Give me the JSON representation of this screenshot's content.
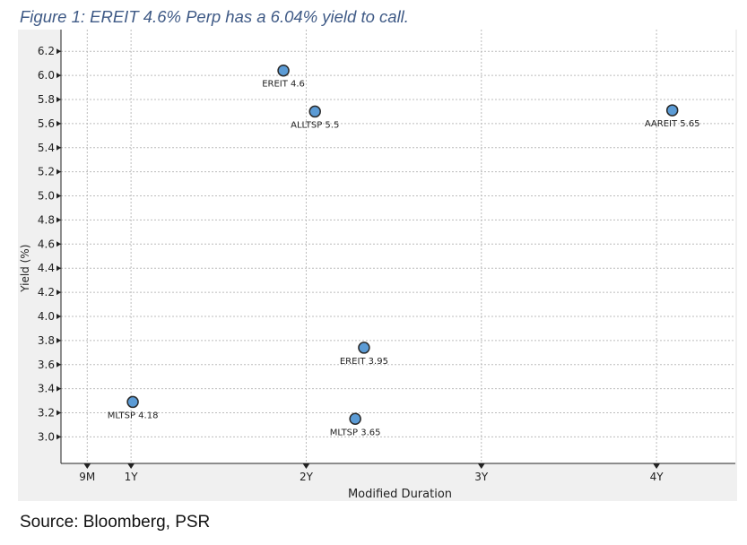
{
  "figure_title": "Figure 1: EREIT 4.6% Perp has a 6.04% yield to call.",
  "source_note": "Source: Bloomberg, PSR",
  "colors": {
    "point_fill": "#5b9bd5",
    "point_stroke": "#2b2b2b",
    "panel_bg": "#f0f0f0",
    "plot_bg": "#ffffff",
    "grid": "#bcbcbc",
    "title": "#3f5a86"
  },
  "chart_data": {
    "type": "scatter",
    "title": "",
    "xlabel": "Modified Duration",
    "ylabel": "Yield (%)",
    "xlim": [
      0.6,
      4.45
    ],
    "ylim": [
      2.78,
      6.38
    ],
    "x_ticks": [
      {
        "value": 0.75,
        "label": "9M"
      },
      {
        "value": 1,
        "label": "1Y"
      },
      {
        "value": 2,
        "label": "2Y"
      },
      {
        "value": 3,
        "label": "3Y"
      },
      {
        "value": 4,
        "label": "4Y"
      }
    ],
    "y_ticks": [
      3.0,
      3.2,
      3.4,
      3.6,
      3.8,
      4.0,
      4.2,
      4.4,
      4.6,
      4.8,
      5.0,
      5.2,
      5.4,
      5.6,
      5.8,
      6.0,
      6.2
    ],
    "y_tick_labels": [
      "3.0",
      "3.2",
      "3.4",
      "3.6",
      "3.8",
      "4.0",
      "4.2",
      "4.4",
      "4.6",
      "4.8",
      "5.0",
      "5.2",
      "5.4",
      "5.6",
      "5.8",
      "6.0",
      "6.2"
    ],
    "grid": true,
    "points": [
      {
        "label": "EREIT 4.6",
        "x": 1.87,
        "y": 6.04
      },
      {
        "label": "ALLTSP 5.5",
        "x": 2.05,
        "y": 5.7
      },
      {
        "label": "AAREIT 5.65",
        "x": 4.09,
        "y": 5.71
      },
      {
        "label": "EREIT 3.95",
        "x": 2.33,
        "y": 3.74
      },
      {
        "label": "MLTSP 3.65",
        "x": 2.28,
        "y": 3.15
      },
      {
        "label": "MLTSP 4.18",
        "x": 1.01,
        "y": 3.29
      }
    ]
  }
}
